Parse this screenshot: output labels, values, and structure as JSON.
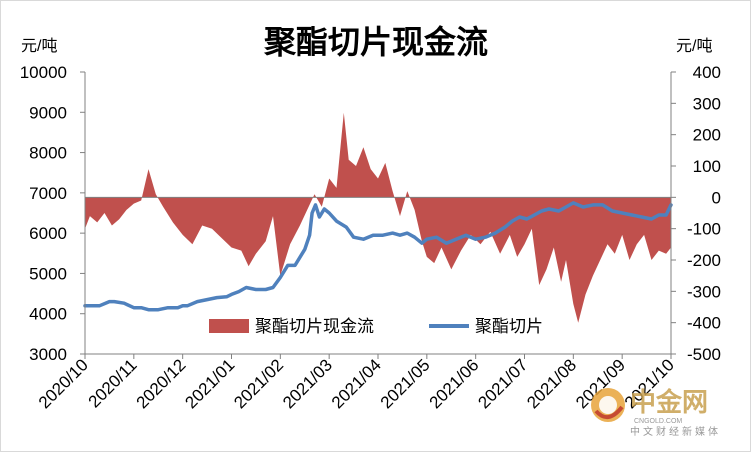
{
  "chart_data": {
    "type": "area+line",
    "title": "聚酯切片现金流",
    "left_unit": "元/吨",
    "right_unit": "元/吨",
    "left_axis": {
      "min": 3000,
      "max": 10000,
      "step": 1000,
      "ticks": [
        "10000",
        "9000",
        "8000",
        "7000",
        "6000",
        "5000",
        "4000",
        "3000"
      ]
    },
    "right_axis": {
      "min": -500,
      "max": 400,
      "step": 100,
      "ticks": [
        "400",
        "300",
        "200",
        "100",
        "0",
        "-100",
        "-200",
        "-300",
        "-400",
        "-500"
      ]
    },
    "x_ticks": [
      "2020/10",
      "2020/11",
      "2020/12",
      "2021/01",
      "2021/02",
      "2021/03",
      "2021/04",
      "2021/05",
      "2021/06",
      "2021/07",
      "2021/08",
      "2021/09",
      "2021/10"
    ],
    "series": [
      {
        "name": "聚酯切片现金流",
        "kind": "area",
        "axis": "right",
        "color": "#c0504d",
        "x": [
          0,
          0.1,
          0.25,
          0.4,
          0.55,
          0.7,
          0.85,
          1,
          1.15,
          1.3,
          1.45,
          1.6,
          1.8,
          2,
          2.2,
          2.4,
          2.6,
          2.8,
          3,
          3.2,
          3.35,
          3.5,
          3.7,
          3.85,
          4,
          4.2,
          4.4,
          4.55,
          4.7,
          4.85,
          5,
          5.15,
          5.3,
          5.4,
          5.55,
          5.7,
          5.85,
          6,
          6.15,
          6.3,
          6.45,
          6.6,
          6.75,
          6.9,
          7,
          7.15,
          7.3,
          7.5,
          7.7,
          7.9,
          8.1,
          8.3,
          8.5,
          8.7,
          8.85,
          9,
          9.15,
          9.3,
          9.45,
          9.6,
          9.75,
          9.85,
          10,
          10.1,
          10.25,
          10.4,
          10.55,
          10.7,
          10.85,
          11,
          11.15,
          11.3,
          11.45,
          11.6,
          11.75,
          11.9,
          12
        ],
        "values": [
          -100,
          -60,
          -80,
          -50,
          -90,
          -70,
          -40,
          -20,
          -10,
          90,
          10,
          -30,
          -80,
          -120,
          -150,
          -90,
          -100,
          -130,
          -160,
          -170,
          -220,
          -180,
          -140,
          -60,
          -250,
          -150,
          -90,
          -40,
          10,
          -30,
          60,
          30,
          270,
          120,
          100,
          160,
          90,
          60,
          110,
          20,
          -60,
          20,
          -40,
          -140,
          -190,
          -210,
          -160,
          -230,
          -170,
          -120,
          -150,
          -110,
          -180,
          -120,
          -190,
          -150,
          -100,
          -280,
          -230,
          -160,
          -270,
          -200,
          -340,
          -400,
          -310,
          -250,
          -200,
          -150,
          -180,
          -120,
          -200,
          -150,
          -120,
          -200,
          -170,
          -180,
          -160
        ]
      },
      {
        "name": "聚酯切片",
        "kind": "line",
        "axis": "left",
        "color": "#4f81bd",
        "x": [
          0,
          0.3,
          0.5,
          0.6,
          0.8,
          1,
          1.15,
          1.3,
          1.5,
          1.7,
          1.9,
          2,
          2.1,
          2.3,
          2.5,
          2.7,
          2.9,
          3,
          3.15,
          3.3,
          3.5,
          3.7,
          3.85,
          4,
          4.15,
          4.3,
          4.5,
          4.6,
          4.65,
          4.72,
          4.8,
          4.9,
          5,
          5.15,
          5.35,
          5.5,
          5.7,
          5.9,
          6.1,
          6.3,
          6.45,
          6.6,
          6.75,
          6.9,
          7,
          7.2,
          7.4,
          7.6,
          7.8,
          8,
          8.2,
          8.4,
          8.6,
          8.75,
          8.9,
          9.05,
          9.2,
          9.35,
          9.5,
          9.7,
          9.85,
          10,
          10.2,
          10.4,
          10.6,
          10.8,
          11,
          11.2,
          11.4,
          11.6,
          11.75,
          11.9,
          12
        ],
        "values": [
          4200,
          4200,
          4300,
          4300,
          4260,
          4150,
          4150,
          4100,
          4100,
          4150,
          4150,
          4200,
          4200,
          4300,
          4350,
          4400,
          4420,
          4480,
          4550,
          4650,
          4600,
          4600,
          4650,
          4900,
          5200,
          5200,
          5600,
          5950,
          6500,
          6700,
          6400,
          6600,
          6500,
          6300,
          6150,
          5900,
          5850,
          5950,
          5950,
          6000,
          5950,
          6000,
          5900,
          5750,
          5850,
          5900,
          5750,
          5850,
          5950,
          5850,
          5900,
          6000,
          6150,
          6300,
          6400,
          6350,
          6450,
          6550,
          6600,
          6550,
          6650,
          6750,
          6650,
          6700,
          6700,
          6550,
          6500,
          6450,
          6400,
          6350,
          6450,
          6450,
          6700
        ]
      }
    ],
    "legend": [
      "聚酯切片现金流",
      "聚酯切片"
    ],
    "legend_position": "inside-bottom-center",
    "watermark": "中金网 CNGOLD.COM 中文财经新媒体"
  }
}
